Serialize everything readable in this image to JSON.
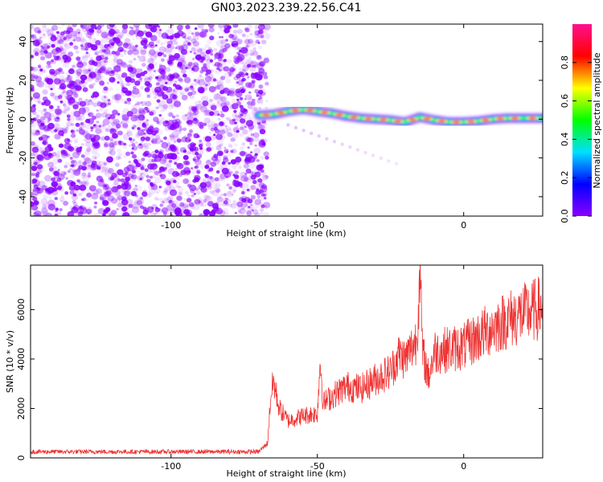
{
  "title": "GN03.2023.239.22.56.C41",
  "chart_data": [
    {
      "type": "heatmap",
      "xlabel": "Height of straight line (km)",
      "ylabel": "Frequency (Hz)",
      "xlim": [
        -148,
        27
      ],
      "ylim": [
        -50,
        49
      ],
      "xticks": [
        -100,
        -50,
        0
      ],
      "yticks": [
        -40,
        -20,
        0,
        20,
        40
      ],
      "noise_region_x": [
        -148,
        -67
      ],
      "signal_track": {
        "x": [
          -70,
          -65,
          -60,
          -55,
          -50,
          -45,
          -40,
          -35,
          -30,
          -25,
          -20,
          -15,
          -10,
          -5,
          0,
          5,
          10,
          15,
          20,
          27
        ],
        "frequency": [
          2,
          2.5,
          4,
          5,
          4,
          3,
          1.5,
          0.5,
          0,
          -0.5,
          -1.5,
          1,
          -0.5,
          -1.5,
          -1.5,
          -1,
          0,
          0.5,
          0.5,
          0.5
        ]
      },
      "faint_branch": {
        "x": [
          -60,
          -23
        ],
        "frequency": [
          -3,
          -23
        ]
      },
      "colorbar": {
        "label": "Normalized spectral amplitude",
        "ticks": [
          0.0,
          0.2,
          0.4,
          0.6,
          0.8
        ],
        "range": [
          0,
          1
        ],
        "colors": [
          "#8b00ff",
          "#0000ff",
          "#00e0ff",
          "#00ff00",
          "#ffff00",
          "#ff0000",
          "#ff1090"
        ]
      },
      "background_color": "#8800ff"
    },
    {
      "type": "line",
      "xlabel": "Height of straight line (km)",
      "ylabel": "SNR (10 * v/v)",
      "xlim": [
        -148,
        27
      ],
      "ylim": [
        0,
        7800
      ],
      "xticks": [
        -100,
        -50,
        0
      ],
      "yticks": [
        0,
        2000,
        4000,
        6000
      ],
      "line_color": "#ee3333",
      "series_shape": {
        "x": [
          -148,
          -70,
          -67,
          -66,
          -65,
          -63,
          -60,
          -55,
          -50,
          -49,
          -48,
          -45,
          -40,
          -35,
          -30,
          -25,
          -22,
          -20,
          -16,
          -15,
          -14,
          -12,
          -10,
          -5,
          0,
          5,
          10,
          15,
          20,
          27
        ],
        "y": [
          250,
          250,
          600,
          2400,
          3100,
          2000,
          1500,
          1700,
          1800,
          4000,
          2200,
          2500,
          2900,
          2800,
          3200,
          3500,
          4200,
          4000,
          4800,
          7700,
          4200,
          3300,
          4300,
          4400,
          4500,
          4900,
          5300,
          5600,
          5800,
          6100
        ]
      }
    }
  ]
}
